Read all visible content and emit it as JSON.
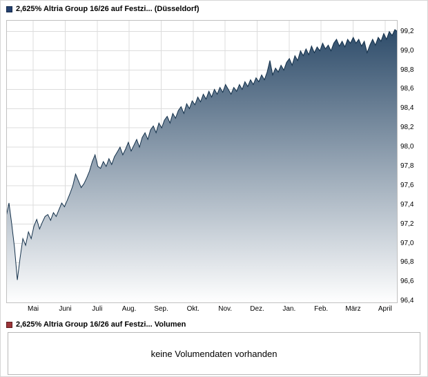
{
  "colors": {
    "navy_swatch": "#24406e",
    "navy_border": "#14294a",
    "red_swatch": "#9b3438",
    "red_border": "#5f1d20",
    "line": "#13304a",
    "fill_top": "#2e4c6a",
    "fill_bottom": "#ffffff",
    "grid": "#dcdcdc",
    "plot_border": "#c0c0c0"
  },
  "volume_panel": {
    "legend": "2,625% Altria Group 16/26 auf Festzi... Volumen",
    "message": "keine Volumendaten vorhanden"
  },
  "chart_data": {
    "type": "area",
    "title": "2,625% Altria Group 16/26 auf Festzi... (Düsseldorf)",
    "legend_position": "top-left",
    "grid": true,
    "x_categories": [
      "Mai",
      "Juni",
      "Juli",
      "Aug.",
      "Sep.",
      "Okt.",
      "Nov.",
      "Dez.",
      "Jan.",
      "Feb.",
      "März",
      "April"
    ],
    "x_first_frac": 0.069,
    "x_last_frac": 0.968,
    "y_ticks": [
      99.2,
      99.0,
      98.8,
      98.6,
      98.4,
      98.2,
      98.0,
      97.8,
      97.6,
      97.4,
      97.2,
      97.0,
      96.8,
      96.6,
      96.4
    ],
    "y_tick_labels": [
      "99,2",
      "99,0",
      "98,8",
      "98,6",
      "98,4",
      "98,2",
      "98,0",
      "97,8",
      "97,6",
      "97,4",
      "97,2",
      "97,0",
      "96,8",
      "96,6",
      "96,4"
    ],
    "ylim": [
      96.38,
      99.32
    ],
    "values": [
      97.28,
      97.42,
      97.2,
      96.95,
      96.62,
      96.85,
      97.05,
      96.98,
      97.12,
      97.05,
      97.18,
      97.25,
      97.15,
      97.22,
      97.28,
      97.3,
      97.24,
      97.32,
      97.28,
      97.35,
      97.42,
      97.38,
      97.45,
      97.52,
      97.6,
      97.72,
      97.65,
      97.58,
      97.62,
      97.68,
      97.75,
      97.85,
      97.92,
      97.8,
      97.78,
      97.85,
      97.8,
      97.88,
      97.82,
      97.9,
      97.95,
      98.0,
      97.92,
      97.98,
      98.05,
      97.96,
      98.02,
      98.08,
      98.0,
      98.1,
      98.15,
      98.08,
      98.18,
      98.22,
      98.15,
      98.25,
      98.2,
      98.28,
      98.32,
      98.25,
      98.35,
      98.3,
      98.38,
      98.42,
      98.35,
      98.45,
      98.4,
      98.48,
      98.44,
      98.52,
      98.47,
      98.55,
      98.5,
      98.58,
      98.52,
      98.6,
      98.55,
      98.62,
      98.57,
      98.65,
      98.6,
      98.55,
      98.62,
      98.58,
      98.65,
      98.6,
      98.68,
      98.63,
      98.7,
      98.65,
      98.72,
      98.68,
      98.75,
      98.7,
      98.78,
      98.9,
      98.75,
      98.82,
      98.78,
      98.85,
      98.8,
      98.88,
      98.92,
      98.85,
      98.95,
      98.9,
      99.0,
      98.95,
      99.02,
      98.96,
      99.05,
      98.98,
      99.04,
      99.0,
      99.08,
      99.02,
      99.06,
      99.0,
      99.08,
      99.12,
      99.05,
      99.1,
      99.04,
      99.12,
      99.08,
      99.14,
      99.08,
      99.12,
      99.05,
      99.1,
      98.98,
      99.06,
      99.12,
      99.06,
      99.14,
      99.1,
      99.18,
      99.12,
      99.2,
      99.16,
      99.22,
      99.2
    ]
  }
}
